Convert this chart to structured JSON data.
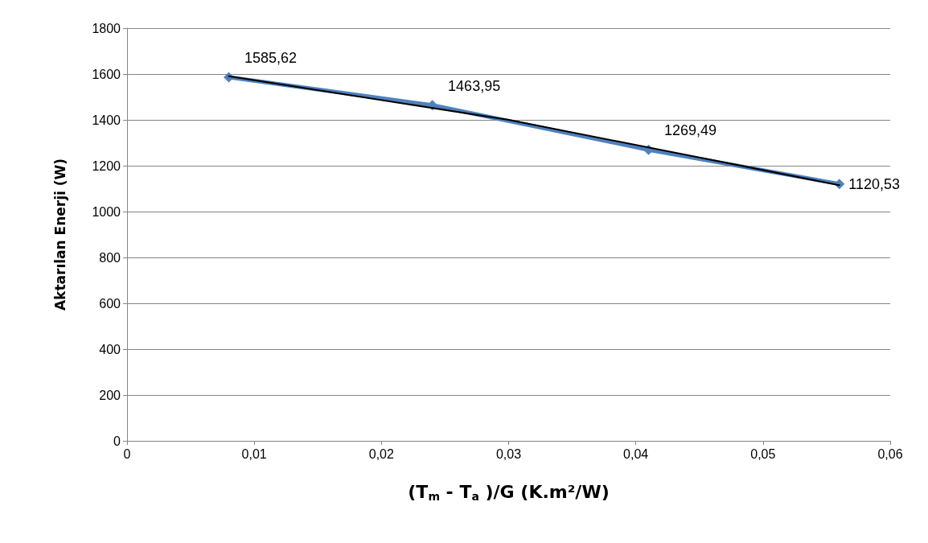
{
  "chart_data": {
    "type": "line",
    "xlabel": "(T$_{m}$ - T$_{a}$ )/G (K.m²/W)",
    "ylabel": "Aktarılan Enerji (W)",
    "xlim": [
      0,
      0.06
    ],
    "xticks": [
      0,
      {
        "value": 0.01,
        "label": "0,01"
      },
      {
        "value": 0.02,
        "label": "0,02"
      },
      {
        "value": 0.03,
        "label": "0,03"
      },
      {
        "value": 0.04,
        "label": "0,04"
      },
      {
        "value": 0.05,
        "label": "0,05"
      },
      {
        "value": 0.06,
        "label": "0,06"
      }
    ],
    "ylim": [
      0,
      1800
    ],
    "yticks": [
      0,
      200,
      400,
      600,
      800,
      1000,
      1200,
      1400,
      1600,
      1800
    ],
    "grid": "y",
    "series": [
      {
        "x": [
          0.008,
          0.024,
          0.041,
          0.056
        ],
        "values": [
          1585.62,
          1463.95,
          1269.49,
          1120.53
        ],
        "color": "#4f81bd",
        "marker": "diamond",
        "value_labels": [
          "1585,62",
          "1463,95",
          "1269,49",
          "1120,53"
        ]
      },
      {
        "x": [
          0.008,
          0.03,
          0.056
        ],
        "values": [
          1590,
          1400,
          1115
        ],
        "color": "#000000",
        "marker": "none"
      }
    ]
  }
}
